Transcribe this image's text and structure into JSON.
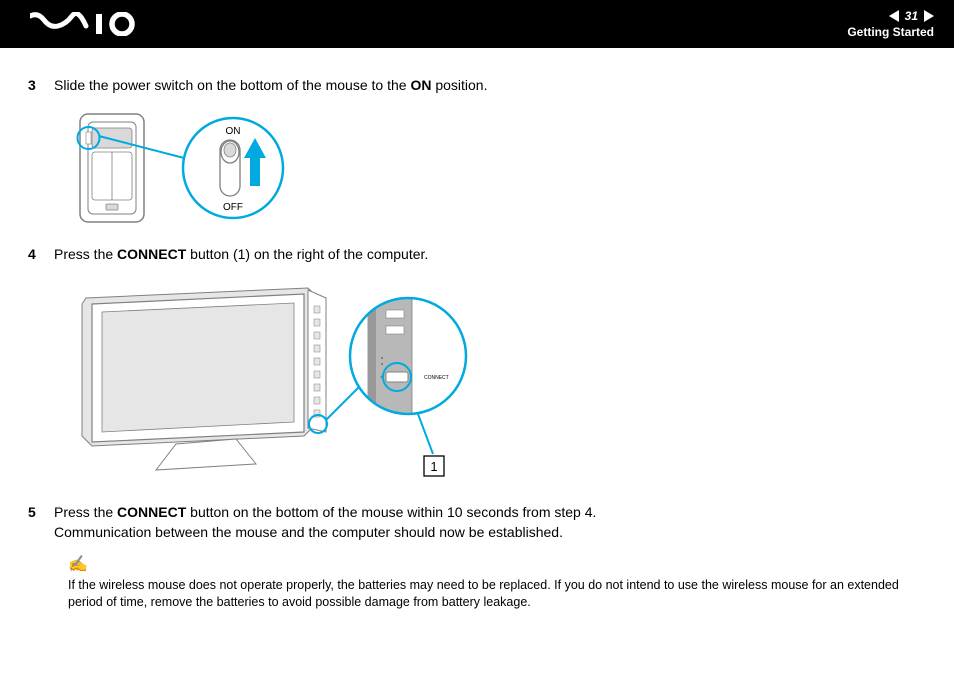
{
  "header": {
    "page_number": "31",
    "section": "Getting Started"
  },
  "steps": {
    "s3": {
      "num": "3",
      "pre": "Slide the power switch on the bottom of the mouse to the ",
      "bold": "ON",
      "post": " position."
    },
    "s4": {
      "num": "4",
      "pre": "Press the ",
      "bold": "CONNECT",
      "post": " button (1) on the right of the computer."
    },
    "s5": {
      "num": "5",
      "pre": "Press the ",
      "bold": "CONNECT",
      "post": " button on the bottom of the mouse within 10 seconds from step 4.",
      "line2": "Communication between the mouse and the computer should now be established."
    }
  },
  "figure1": {
    "on_label": "ON",
    "off_label": "OFF",
    "accent": "#00a9e0",
    "stroke": "#808080",
    "fill": "#ffffff",
    "shade": "#d9d9d9"
  },
  "figure2": {
    "callout_number": "1",
    "label_connect": "CONNECT",
    "accent": "#00a9e0",
    "stroke": "#808080",
    "screen": "#e6e6e6",
    "dark": "#999999",
    "panel_face": "#b8b8b8"
  },
  "note": {
    "text": "If the wireless mouse does not operate properly, the batteries may need to be replaced. If you do not intend to use the wireless mouse for an extended period of time, remove the batteries to avoid possible damage from battery leakage."
  },
  "colors": {
    "accent": "#00a9e0"
  }
}
